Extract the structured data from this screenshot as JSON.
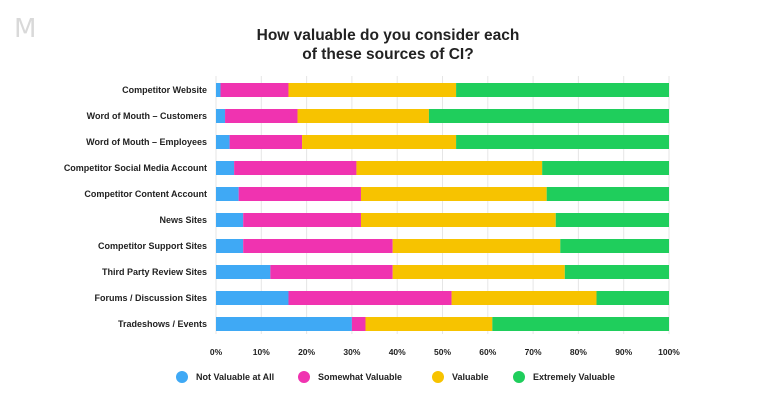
{
  "logo_text": "M",
  "chart_data": {
    "type": "bar",
    "orientation": "horizontal",
    "stacked": true,
    "title_lines": [
      "How valuable do you consider each",
      "of these sources of CI?"
    ],
    "categories": [
      "Competitor Website",
      "Word of Mouth – Customers",
      "Word of Mouth – Employees",
      "Competitor Social Media Account",
      "Competitor Content Account",
      "News Sites",
      "Competitor Support Sites",
      "Third Party Review Sites",
      "Forums / Discussion Sites",
      "Tradeshows / Events"
    ],
    "series": [
      {
        "name": "Not Valuable at All",
        "color": "#3fa9f5",
        "values": [
          1,
          2,
          3,
          4,
          5,
          6,
          6,
          12,
          16,
          30
        ]
      },
      {
        "name": "Somewhat Valuable",
        "color": "#f033b0",
        "values": [
          15,
          16,
          16,
          27,
          27,
          26,
          33,
          27,
          36,
          3
        ]
      },
      {
        "name": "Valuable",
        "color": "#f7c300",
        "values": [
          37,
          29,
          34,
          41,
          41,
          43,
          37,
          38,
          32,
          28
        ]
      },
      {
        "name": "Extremely Valuable",
        "color": "#1fce5c",
        "values": [
          47,
          53,
          47,
          28,
          27,
          25,
          24,
          23,
          16,
          39
        ]
      }
    ],
    "x_ticks": [
      "0%",
      "10%",
      "20%",
      "30%",
      "40%",
      "50%",
      "60%",
      "70%",
      "80%",
      "90%",
      "100%"
    ],
    "xlim": [
      0,
      100
    ],
    "grid": true,
    "legend_position": "bottom"
  }
}
